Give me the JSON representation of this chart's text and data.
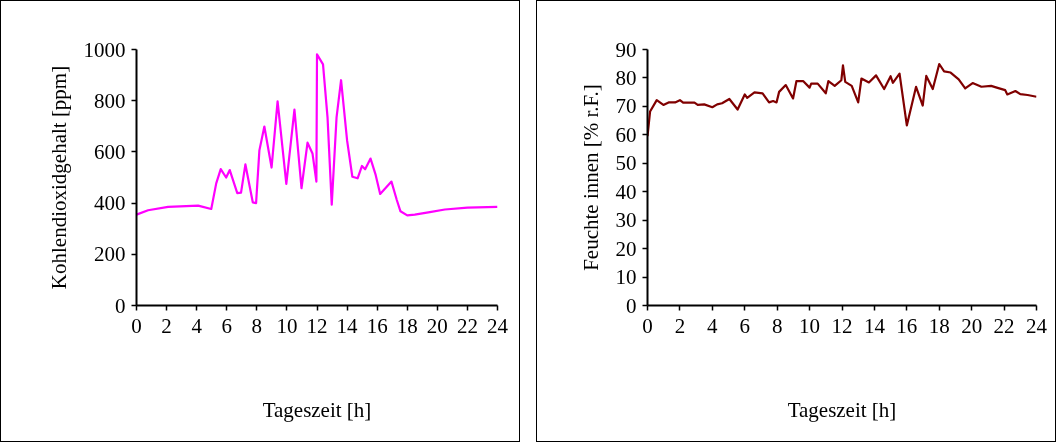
{
  "chart_data": [
    {
      "type": "line",
      "xlabel": "Tageszeit [h]",
      "ylabel": "Kohlendioxidgehalt [ppm]",
      "xlim": [
        0,
        24
      ],
      "xticks": [
        0,
        2,
        4,
        6,
        8,
        10,
        12,
        14,
        16,
        18,
        20,
        22,
        24
      ],
      "ylim": [
        0,
        1000
      ],
      "yticks": [
        0,
        200,
        400,
        600,
        800,
        1000
      ],
      "grid": false,
      "marker": "none",
      "line_style": "solid",
      "series": [
        {
          "color": "#ff00ff",
          "x": [
            0,
            0.77,
            2.1,
            4.1,
            4.97,
            5.3,
            5.6,
            5.96,
            6.2,
            6.7,
            6.95,
            7.24,
            7.73,
            7.95,
            8.17,
            8.5,
            8.98,
            9.38,
            9.96,
            10.5,
            10.97,
            11.37,
            11.7,
            11.96,
            12.0,
            12.4,
            12.7,
            12.98,
            13.3,
            13.6,
            14.0,
            14.35,
            14.7,
            14.99,
            15.2,
            15.56,
            15.9,
            16.2,
            16.95,
            17.3,
            17.55,
            18,
            18.5,
            19.5,
            20.5,
            22,
            24
          ],
          "values": [
            355,
            372,
            385,
            390,
            377,
            477,
            533,
            500,
            529,
            439,
            441,
            551,
            403,
            400,
            606,
            699,
            539,
            797,
            475,
            765,
            458,
            636,
            594,
            484,
            981,
            942,
            735,
            394,
            735,
            880,
            645,
            503,
            497,
            545,
            532,
            574,
            510,
            436,
            484,
            413,
            368,
            352,
            355,
            365,
            375,
            382,
            385
          ]
        }
      ]
    },
    {
      "type": "line",
      "xlabel": "Tageszeit [h]",
      "ylabel": "Feuchte innen [% r.F.]",
      "xlim": [
        0,
        24
      ],
      "xticks": [
        0,
        2,
        4,
        6,
        8,
        10,
        12,
        14,
        16,
        18,
        20,
        22,
        24
      ],
      "ylim": [
        0,
        90
      ],
      "yticks": [
        0,
        10,
        20,
        30,
        40,
        50,
        60,
        70,
        80,
        90
      ],
      "grid": false,
      "marker": "none",
      "line_style": "solid",
      "series": [
        {
          "color": "#800000",
          "x": [
            0,
            0.16,
            0.57,
            0.98,
            1.3,
            1.7,
            2.0,
            2.2,
            2.9,
            3.1,
            3.5,
            4.0,
            4.3,
            4.6,
            5.05,
            5.56,
            6.0,
            6.15,
            6.6,
            7.1,
            7.5,
            7.75,
            7.96,
            8.12,
            8.53,
            8.98,
            9.19,
            9.6,
            10.0,
            10.1,
            10.5,
            11.0,
            11.16,
            11.55,
            11.96,
            12.06,
            12.2,
            12.6,
            13.0,
            13.2,
            13.66,
            14.1,
            14.6,
            15.0,
            15.14,
            15.55,
            16.0,
            16.57,
            16.98,
            17.2,
            17.6,
            18.0,
            18.3,
            18.7,
            19.2,
            19.6,
            20.06,
            20.6,
            21.2,
            21.6,
            22.07,
            22.2,
            22.7,
            23.0,
            23.45,
            24
          ],
          "values": [
            59.5,
            68.2,
            72.2,
            70.5,
            71.4,
            71.4,
            72.2,
            71.3,
            71.3,
            70.5,
            70.7,
            69.7,
            70.7,
            71.1,
            72.6,
            68.9,
            74.2,
            73.0,
            74.9,
            74.6,
            71.4,
            71.9,
            71.4,
            75.1,
            77.5,
            72.8,
            78.9,
            78.9,
            76.6,
            78.0,
            78.0,
            74.6,
            78.9,
            77.2,
            79.2,
            84.4,
            78.6,
            77.2,
            71.4,
            79.8,
            78.4,
            80.9,
            76.1,
            80.6,
            78.3,
            81.5,
            63.3,
            76.9,
            70.3,
            80.7,
            76.1,
            84.9,
            82.3,
            81.9,
            79.5,
            76.3,
            78.2,
            76.9,
            77.2,
            76.5,
            75.7,
            74.2,
            75.4,
            74.3,
            74.0,
            73.4
          ]
        }
      ]
    }
  ]
}
